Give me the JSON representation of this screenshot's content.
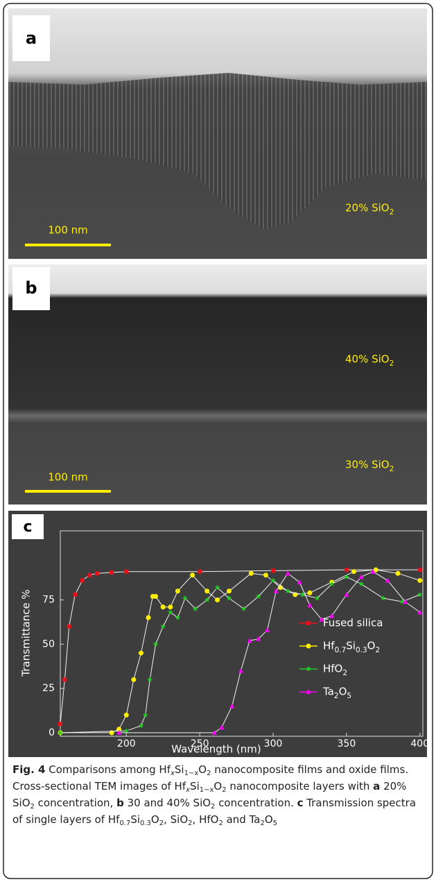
{
  "panels": [
    {
      "label": "a",
      "annotations": [
        "20% SiO2"
      ],
      "scale_bar": "100 nm"
    },
    {
      "label": "b",
      "annotations": [
        "40% SiO2",
        "30% SiO2"
      ],
      "scale_bar": "100 nm"
    }
  ],
  "chart_data": {
    "type": "line",
    "panel_label": "c",
    "xlabel": "Wavelength (nm)",
    "ylabel": "Transmittance %",
    "xlim": [
      155,
      402
    ],
    "ylim": [
      -2,
      114
    ],
    "xticks": [
      200,
      250,
      300,
      350,
      400
    ],
    "yticks": [
      0,
      25,
      50,
      75
    ],
    "legend": "right",
    "series": [
      {
        "name": "Fused silica",
        "color": "#e8101a",
        "marker": "square",
        "x": [
          155,
          158,
          161,
          165,
          170,
          175,
          180,
          190,
          200,
          250,
          300,
          350,
          400
        ],
        "values": [
          5,
          30,
          60,
          78,
          86,
          89,
          90,
          90.5,
          91,
          91,
          91.5,
          92,
          92
        ]
      },
      {
        "name": "Hf0.7Si0.3O2",
        "color": "#ffee00",
        "marker": "circle",
        "x": [
          155,
          190,
          195,
          200,
          205,
          210,
          215,
          218,
          220,
          225,
          230,
          235,
          245,
          255,
          262,
          270,
          285,
          295,
          305,
          315,
          325,
          340,
          355,
          370,
          385,
          400
        ],
        "values": [
          0,
          0,
          2,
          10,
          30,
          45,
          65,
          77,
          77,
          71,
          71,
          80,
          89,
          80,
          75,
          80,
          90,
          89,
          82,
          78,
          79,
          85,
          91,
          92,
          90,
          86
        ]
      },
      {
        "name": "HfO2",
        "color": "#22cc22",
        "marker": "star",
        "x": [
          155,
          200,
          210,
          213,
          216,
          220,
          225,
          230,
          235,
          240,
          247,
          255,
          262,
          270,
          280,
          290,
          300,
          310,
          320,
          330,
          340,
          350,
          360,
          375,
          388,
          400
        ],
        "values": [
          0,
          1,
          4,
          10,
          30,
          50,
          60,
          68,
          65,
          76,
          70,
          75,
          82,
          76,
          70,
          77,
          86,
          80,
          78,
          76,
          84,
          88,
          84,
          76,
          74,
          78
        ]
      },
      {
        "name": "Ta2O5",
        "color": "#ff00ff",
        "marker": "triangle",
        "x": [
          195,
          260,
          265,
          272,
          278,
          284,
          290,
          296,
          302,
          310,
          318,
          325,
          333,
          340,
          350,
          360,
          368,
          378,
          390,
          400
        ],
        "values": [
          0,
          0,
          3,
          15,
          35,
          52,
          53,
          58,
          80,
          90,
          85,
          72,
          64,
          66,
          78,
          88,
          91,
          86,
          74,
          68
        ]
      }
    ]
  },
  "caption": {
    "runs": [
      "Fig. 4",
      " Comparisons among Hf",
      "x",
      "Si",
      "1−x",
      "O",
      "2",
      " nanocomposite films and oxide films. Cross-sectional TEM images of Hf",
      "x",
      "Si",
      "1−x",
      "O",
      "2",
      " nanocomposite layers with ",
      "a",
      " 20% SiO",
      "2",
      " concentration, ",
      "b",
      " 30 and 40% SiO",
      "2",
      " concentration. ",
      "c",
      " Transmission spectra of single layers of Hf",
      "0.7",
      "Si",
      "0.3",
      "O",
      "2",
      ", SiO",
      "2",
      ", HfO",
      "2",
      " and Ta",
      "2",
      "O",
      "5"
    ]
  }
}
